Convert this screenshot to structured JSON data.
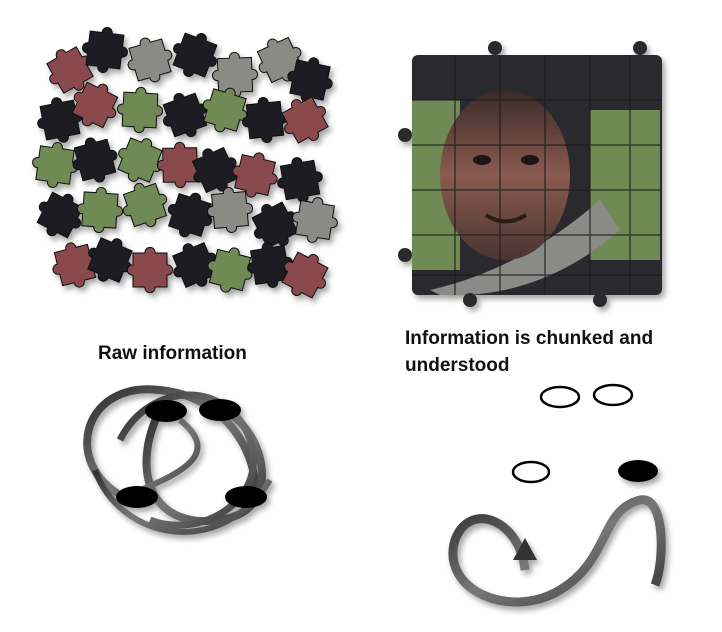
{
  "captions": {
    "left": "Raw information",
    "right": "Information is chunked and\nunderstood"
  },
  "illustrations": {
    "left_puzzle": "scattered-jigsaw-pieces",
    "right_puzzle": "assembled-jigsaw-portrait",
    "left_ribbon": "tangled-ribbon-loops-with-four-black-nodes",
    "right_ribbon": "smooth-ribbon-path-with-arrow-and-one-black-node",
    "pair_circles": "two-empty-oval-outlines",
    "single_circle": "one-empty-oval-outline"
  },
  "colors": {
    "piece_red": "#8a4a4e",
    "piece_green": "#6f8a55",
    "piece_gray": "#8a8a86",
    "piece_dark": "#1e1f22",
    "ribbon": "#4a4a4a",
    "node": "#000000"
  }
}
